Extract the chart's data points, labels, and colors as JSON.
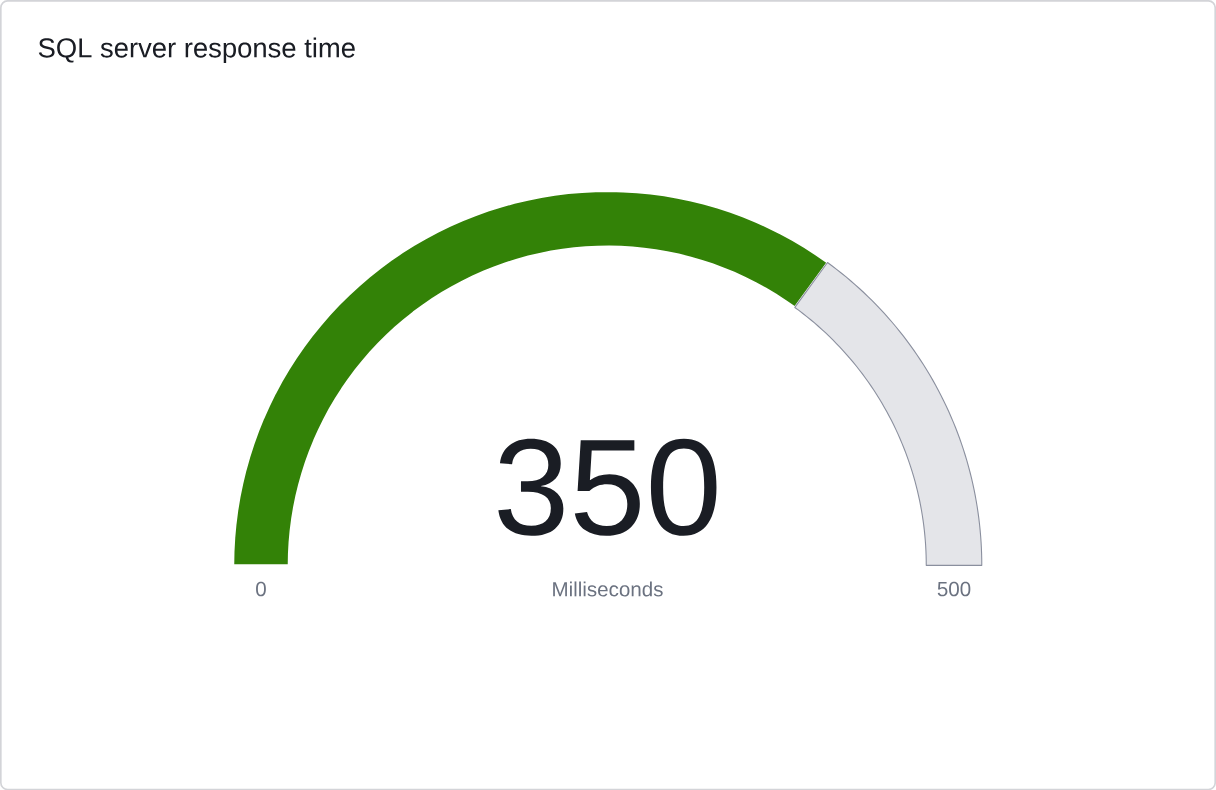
{
  "chart_data": {
    "type": "donut",
    "title": "SQL server response time",
    "xlabel": "Milliseconds",
    "categories": [
      null,
      null
    ],
    "values": [
      350,
      150
    ],
    "colors": [
      "#338207",
      "#e4e5e9"
    ],
    "value_labels": [
      "350",
      null
    ],
    "annotations": [
      "0",
      "500"
    ]
  }
}
